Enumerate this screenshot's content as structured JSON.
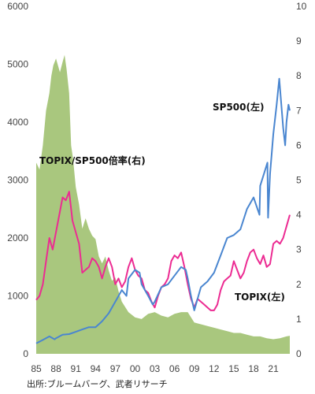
{
  "chart_data": {
    "type": "line",
    "x_range": [
      1985,
      2023.5
    ],
    "left_axis": {
      "ylim": [
        0,
        6000
      ],
      "ticks": [
        "0",
        "1000",
        "2000",
        "3000",
        "4000",
        "5000",
        "6000"
      ]
    },
    "right_axis": {
      "ylim": [
        0,
        10
      ],
      "ticks": [
        "0",
        "1",
        "2",
        "3",
        "4",
        "5",
        "6",
        "7",
        "8",
        "9",
        "10"
      ]
    },
    "x_ticks": [
      "85",
      "88",
      "91",
      "94",
      "97",
      "00",
      "03",
      "06",
      "09",
      "12",
      "15",
      "18",
      "21"
    ],
    "x_tick_years": [
      1985,
      1988,
      1991,
      1994,
      1997,
      2000,
      2003,
      2006,
      2009,
      2012,
      2015,
      2018,
      2021
    ],
    "annotations": {
      "sp500": "SP500(左)",
      "ratio": "TOPIX/SP500倍率(右)",
      "topix": "TOPIX(左)"
    },
    "source": "出所:ブルームバーグ、武者リサーチ",
    "colors": {
      "sp500": "#4a86d0",
      "topix": "#ec2b92",
      "ratio": "#a9c77e"
    },
    "series": [
      {
        "key": "ratio",
        "type": "area",
        "axis": "right",
        "x": [
          1985,
          1985.5,
          1986,
          1986.5,
          1987,
          1987.3,
          1987.6,
          1988,
          1988.3,
          1988.6,
          1989,
          1989.3,
          1989.6,
          1990,
          1990.3,
          1990.6,
          1991,
          1991.5,
          1992,
          1992.5,
          1993,
          1993.5,
          1994,
          1994.5,
          1995,
          1995.5,
          1996,
          1996.5,
          1997,
          1997.5,
          1998,
          1999,
          2000,
          2001,
          2002,
          2003,
          2004,
          2005,
          2006,
          2007,
          2008,
          2009,
          2010,
          2011,
          2012,
          2013,
          2014,
          2015,
          2016,
          2017,
          2018,
          2019,
          2020,
          2021,
          2022,
          2023,
          2023.5
        ],
        "values": [
          5.5,
          5.3,
          6.0,
          7.0,
          7.5,
          8.0,
          8.3,
          8.5,
          8.3,
          8.1,
          8.4,
          8.6,
          8.2,
          7.5,
          6.0,
          5.6,
          4.8,
          4.3,
          3.6,
          3.9,
          3.6,
          3.4,
          3.3,
          2.8,
          2.6,
          2.8,
          2.4,
          2.1,
          2.2,
          1.8,
          1.5,
          1.2,
          1.05,
          1.0,
          1.15,
          1.2,
          1.1,
          1.05,
          1.15,
          1.2,
          1.2,
          0.9,
          0.85,
          0.8,
          0.75,
          0.7,
          0.65,
          0.6,
          0.6,
          0.55,
          0.5,
          0.5,
          0.45,
          0.42,
          0.45,
          0.5,
          0.52
        ]
      },
      {
        "key": "topix",
        "type": "line",
        "axis": "left",
        "x": [
          1985,
          1985.5,
          1986,
          1986.5,
          1987,
          1987.5,
          1988,
          1988.5,
          1989,
          1989.5,
          1990,
          1990.5,
          1991,
          1991.5,
          1992,
          1992.5,
          1993,
          1993.5,
          1994,
          1994.5,
          1995,
          1995.5,
          1996,
          1996.5,
          1997,
          1997.5,
          1998,
          1998.5,
          1999,
          1999.5,
          2000,
          2000.5,
          2001,
          2001.5,
          2002,
          2002.5,
          2003,
          2003.5,
          2004,
          2004.5,
          2005,
          2005.5,
          2006,
          2006.5,
          2007,
          2007.5,
          2008,
          2008.5,
          2009,
          2009.5,
          2010,
          2010.5,
          2011,
          2011.5,
          2012,
          2012.5,
          2013,
          2013.5,
          2014,
          2014.5,
          2015,
          2015.5,
          2016,
          2016.5,
          2017,
          2017.5,
          2018,
          2018.5,
          2019,
          2019.5,
          2020,
          2020.5,
          2021,
          2021.5,
          2022,
          2022.5,
          2023,
          2023.5
        ],
        "values": [
          930,
          1000,
          1200,
          1600,
          2000,
          1800,
          2100,
          2400,
          2700,
          2650,
          2800,
          2300,
          2100,
          1900,
          1400,
          1450,
          1500,
          1650,
          1600,
          1500,
          1300,
          1500,
          1650,
          1500,
          1200,
          1300,
          1150,
          1250,
          1500,
          1650,
          1450,
          1350,
          1300,
          1100,
          1050,
          900,
          800,
          1000,
          1150,
          1200,
          1300,
          1600,
          1700,
          1650,
          1750,
          1500,
          1200,
          950,
          800,
          950,
          900,
          850,
          800,
          750,
          750,
          850,
          1100,
          1250,
          1300,
          1350,
          1600,
          1450,
          1300,
          1400,
          1600,
          1750,
          1800,
          1650,
          1550,
          1700,
          1500,
          1550,
          1900,
          1950,
          1900,
          2000,
          2200,
          2400
        ]
      },
      {
        "key": "sp500",
        "type": "line",
        "axis": "left",
        "x": [
          1985,
          1986,
          1987,
          1987.8,
          1988,
          1989,
          1990,
          1991,
          1992,
          1993,
          1994,
          1995,
          1996,
          1997,
          1998,
          1998.7,
          1999,
          2000,
          2000.7,
          2001,
          2002,
          2002.7,
          2003,
          2004,
          2005,
          2006,
          2007,
          2007.7,
          2008,
          2008.5,
          2009,
          2010,
          2011,
          2012,
          2013,
          2014,
          2015,
          2016,
          2017,
          2018,
          2018.9,
          2019,
          2020.1,
          2020.2,
          2020.5,
          2021,
          2021.5,
          2021.9,
          2022.5,
          2022.8,
          2023,
          2023.3,
          2023.5
        ],
        "values": [
          180,
          240,
          300,
          250,
          270,
          330,
          340,
          380,
          420,
          460,
          460,
          560,
          700,
          900,
          1100,
          1000,
          1300,
          1450,
          1400,
          1200,
          1000,
          850,
          900,
          1150,
          1200,
          1350,
          1500,
          1450,
          1300,
          1000,
          750,
          1150,
          1250,
          1400,
          1700,
          2000,
          2050,
          2150,
          2500,
          2700,
          2400,
          2900,
          3300,
          2350,
          3100,
          3800,
          4300,
          4750,
          3900,
          3600,
          4000,
          4300,
          4200
        ]
      }
    ]
  }
}
